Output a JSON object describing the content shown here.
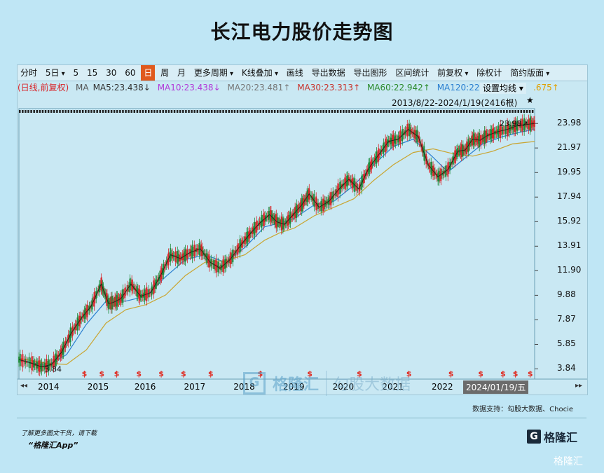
{
  "title": "长江电力股价走势图",
  "toolbar": [
    "分时",
    "5日",
    "5",
    "15",
    "30",
    "60",
    "日",
    "周",
    "月",
    "更多周期",
    "K线叠加",
    "画线",
    "导出数据",
    "导出图形",
    "区间统计",
    "前复权",
    "除权计",
    "简约版面"
  ],
  "ma_legend": {
    "label": "(日线,前复权)",
    "ma": "MA",
    "ma5": "MA5:23.438↓",
    "ma10": "MA10:23.438↓",
    "ma20": "MA20:23.481↑",
    "ma30": "MA30:23.313↑",
    "ma60": "MA60:22.942↑",
    "ma120": "MA120:22.53",
    "extra": ".675↑",
    "setting": "设置均线"
  },
  "range_label": "2013/8/22-2024/1/19(2416根)",
  "last_price_label": "23.98↗",
  "min_label": "3.84",
  "date_box": "2024/01/19/五",
  "watermark": {
    "brand": "格隆汇",
    "sub": "勾股大数据"
  },
  "support": "数据支持：勾股大数据、Chocie",
  "footer": {
    "line1": "了解更多图文干货，请下载",
    "line2": "“格隆汇App”",
    "logo": "格隆汇",
    "corner": "格隆汇"
  },
  "colors": {
    "candle_up": "#d8262b",
    "candle_down": "#1f8a3a",
    "ma5": "#111111",
    "ma20": "#2a7fd0",
    "ma60": "#c9a531",
    "dividend": "#e0281e"
  },
  "chart_data": {
    "type": "line",
    "title": "长江电力股价走势图",
    "y_ticks": [
      23.98,
      21.97,
      19.95,
      17.94,
      15.92,
      13.91,
      11.9,
      9.88,
      7.87,
      5.85,
      3.84
    ],
    "ylim": [
      3.0,
      25.2
    ],
    "x_ticks": [
      "2014",
      "2015",
      "2016",
      "2017",
      "2018",
      "2019",
      "2020",
      "2021",
      "2022",
      "2024/01/19/五"
    ],
    "price": {
      "name": "close",
      "x": [
        2013.64,
        2013.9,
        2014.1,
        2014.3,
        2014.5,
        2014.7,
        2014.9,
        2015.1,
        2015.3,
        2015.45,
        2015.55,
        2015.7,
        2015.9,
        2016.1,
        2016.3,
        2016.5,
        2016.7,
        2016.9,
        2017.1,
        2017.3,
        2017.5,
        2017.7,
        2017.9,
        2018.1,
        2018.3,
        2018.5,
        2018.7,
        2018.85,
        2019.0,
        2019.2,
        2019.35,
        2019.5,
        2019.7,
        2019.9,
        2020.1,
        2020.3,
        2020.5,
        2020.7,
        2020.9,
        2021.1,
        2021.3,
        2021.5,
        2021.7,
        2021.9,
        2022.1,
        2022.3,
        2022.5,
        2022.65,
        2022.8,
        2022.95,
        2023.1,
        2023.3,
        2023.5,
        2023.7,
        2023.9,
        2024.05
      ],
      "y": [
        4.6,
        4.3,
        4.0,
        4.2,
        5.2,
        6.8,
        8.0,
        9.0,
        10.8,
        9.2,
        9.3,
        9.6,
        10.8,
        9.8,
        10.1,
        11.5,
        13.2,
        12.9,
        13.4,
        13.7,
        12.6,
        12.1,
        12.8,
        13.9,
        14.9,
        15.8,
        16.5,
        15.9,
        15.7,
        16.6,
        17.3,
        18.2,
        17.1,
        17.6,
        18.6,
        19.4,
        18.6,
        20.3,
        21.4,
        22.5,
        22.7,
        23.5,
        22.9,
        20.6,
        19.6,
        20.2,
        21.7,
        21.8,
        22.7,
        22.6,
        23.0,
        23.3,
        23.5,
        23.8,
        23.9,
        23.98
      ]
    },
    "ma_series": [
      {
        "name": "MA20",
        "x": [
          2013.64,
          2014.2,
          2014.6,
          2015.0,
          2015.4,
          2015.8,
          2016.2,
          2016.6,
          2017.0,
          2017.4,
          2017.8,
          2018.2,
          2018.6,
          2018.9,
          2019.2,
          2019.6,
          2020.0,
          2020.4,
          2020.8,
          2021.2,
          2021.6,
          2022.0,
          2022.3,
          2022.6,
          2023.0,
          2023.4,
          2023.8,
          2024.05
        ],
        "y": [
          4.6,
          4.1,
          5.0,
          7.5,
          9.4,
          9.4,
          9.8,
          11.4,
          12.8,
          13.2,
          12.6,
          13.8,
          15.5,
          15.8,
          16.2,
          17.3,
          17.6,
          18.9,
          20.6,
          22.1,
          22.7,
          21.2,
          20.0,
          21.0,
          22.3,
          22.9,
          23.3,
          23.5
        ]
      },
      {
        "name": "MA120",
        "x": [
          2013.64,
          2014.2,
          2014.6,
          2015.0,
          2015.4,
          2015.8,
          2016.2,
          2016.6,
          2017.0,
          2017.4,
          2017.8,
          2018.2,
          2018.6,
          2018.9,
          2019.2,
          2019.6,
          2020.0,
          2020.4,
          2020.8,
          2021.2,
          2021.6,
          2022.0,
          2022.4,
          2022.8,
          2023.2,
          2023.6,
          2024.05
        ],
        "y": [
          4.7,
          4.3,
          4.2,
          5.4,
          7.6,
          8.7,
          9.1,
          9.9,
          11.5,
          12.6,
          12.7,
          13.2,
          14.4,
          15.0,
          15.4,
          16.4,
          17.1,
          17.8,
          19.3,
          20.6,
          21.6,
          21.9,
          21.5,
          21.3,
          21.7,
          22.3,
          22.5
        ]
      }
    ],
    "dividend_markers_x": [
      2014.95,
      2015.3,
      2015.6,
      2016.05,
      2016.5,
      2016.95,
      2017.5,
      2018.5,
      2019.5,
      2020.5,
      2021.5,
      2022.35,
      2022.95,
      2023.4,
      2023.65,
      2023.95
    ]
  }
}
